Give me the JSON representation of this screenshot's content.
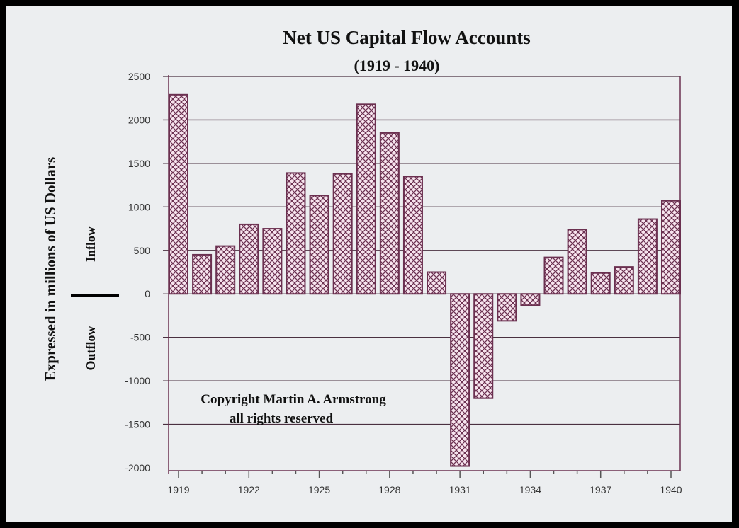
{
  "chart_data": {
    "type": "bar",
    "title": "Net US Capital Flow Accounts",
    "subtitle": "(1919 - 1940)",
    "ylabel": "Expressed in millions of US Dollars",
    "inflow_label": "Inflow",
    "outflow_label": "Outflow",
    "annotation": [
      "Copyright Martin A. Armstrong",
      "all rights reserved"
    ],
    "categories": [
      "1919",
      "1920",
      "1921",
      "1922",
      "1923",
      "1924",
      "1925",
      "1926",
      "1927",
      "1928",
      "1929",
      "1930",
      "1931",
      "1932",
      "1933",
      "1934",
      "1935",
      "1936",
      "1937",
      "1938",
      "1939",
      "1940"
    ],
    "values": [
      2290,
      450,
      550,
      800,
      750,
      1390,
      1130,
      1380,
      2180,
      1850,
      1350,
      250,
      -1980,
      -1200,
      -310,
      -130,
      420,
      740,
      240,
      310,
      860,
      1070
    ],
    "xticks": [
      "1919",
      "1922",
      "1925",
      "1928",
      "1931",
      "1934",
      "1937",
      "1940"
    ],
    "yticks": [
      2500,
      2000,
      1500,
      1000,
      500,
      0,
      -500,
      -1000,
      -1500,
      -2000
    ],
    "ylim": [
      -2000,
      2500
    ],
    "grid": true,
    "bar_color": "#6b3050",
    "bar_fill": "#f7e4ee"
  }
}
